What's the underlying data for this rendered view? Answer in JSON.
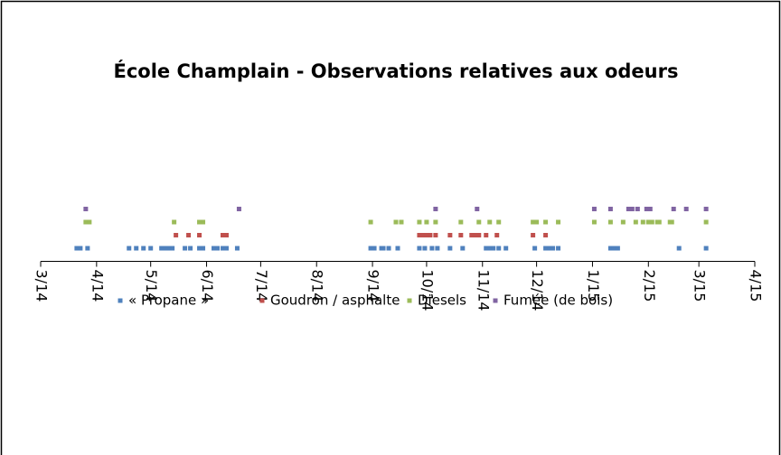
{
  "chart_data": {
    "type": "scatter",
    "title": "École Champlain - Observations relatives aux odeurs",
    "xlim": [
      41699,
      42095
    ],
    "xticks": [
      {
        "value": 41699,
        "label": "3/14"
      },
      {
        "value": 41730,
        "label": "4/14"
      },
      {
        "value": 41760,
        "label": "5/14"
      },
      {
        "value": 41791,
        "label": "6/14"
      },
      {
        "value": 41821,
        "label": "7/14"
      },
      {
        "value": 41852,
        "label": "8/14"
      },
      {
        "value": 41883,
        "label": "9/14"
      },
      {
        "value": 41913,
        "label": "10/14"
      },
      {
        "value": 41944,
        "label": "11/14"
      },
      {
        "value": 41974,
        "label": "12/14"
      },
      {
        "value": 42005,
        "label": "1/15"
      },
      {
        "value": 42036,
        "label": "2/15"
      },
      {
        "value": 42064,
        "label": "3/15"
      },
      {
        "value": 42095,
        "label": "4/15"
      }
    ],
    "ylim": [
      0,
      14
    ],
    "legend": "bottom",
    "series": [
      {
        "name": "« Propane »",
        "color": "#4f81bd",
        "x": [
          41719,
          41721,
          41725,
          41748,
          41752,
          41756,
          41760,
          41766,
          41768,
          41770,
          41772,
          41779,
          41782,
          41787,
          41789,
          41795,
          41797,
          41800,
          41802,
          41808,
          41882,
          41884,
          41888,
          41889,
          41892,
          41897,
          41909,
          41912,
          41916,
          41919,
          41926,
          41933,
          41946,
          41948,
          41950,
          41953,
          41957,
          41973,
          41979,
          41981,
          41983,
          41986,
          42015,
          42017,
          42019,
          42053,
          42068
        ],
        "values": [
          1,
          1,
          1,
          1,
          1,
          1,
          1,
          1,
          1,
          1,
          1,
          1,
          1,
          1,
          1,
          1,
          1,
          1,
          1,
          1,
          1,
          1,
          1,
          1,
          1,
          1,
          1,
          1,
          1,
          1,
          1,
          1,
          1,
          1,
          1,
          1,
          1,
          1,
          1,
          1,
          1,
          1,
          1,
          1,
          1,
          1,
          1
        ]
      },
      {
        "name": "Goudron / asphalte",
        "color": "#c0504d",
        "x": [
          41774,
          41781,
          41787,
          41800,
          41802,
          41909,
          41911,
          41913,
          41915,
          41918,
          41926,
          41932,
          41938,
          41940,
          41942,
          41946,
          41952,
          41972,
          41979
        ],
        "values": [
          2,
          2,
          2,
          2,
          2,
          2,
          2,
          2,
          2,
          2,
          2,
          2,
          2,
          2,
          2,
          2,
          2,
          2,
          2
        ]
      },
      {
        "name": "Diesels",
        "color": "#9bbb59",
        "x": [
          41724,
          41726,
          41773,
          41787,
          41789,
          41882,
          41896,
          41899,
          41909,
          41913,
          41918,
          41932,
          41942,
          41948,
          41953,
          41972,
          41974,
          41979,
          41986,
          42006,
          42015,
          42022,
          42029,
          42033,
          42036,
          42038,
          42041,
          42042,
          42048,
          42049,
          42068
        ],
        "values": [
          3,
          3,
          3,
          3,
          3,
          3,
          3,
          3,
          3,
          3,
          3,
          3,
          3,
          3,
          3,
          3,
          3,
          3,
          3,
          3,
          3,
          3,
          3,
          3,
          3,
          3,
          3,
          3,
          3,
          3,
          3
        ]
      },
      {
        "name": "Fumée (de bois)",
        "color": "#8064a2",
        "x": [
          41724,
          41809,
          41918,
          41941,
          42006,
          42015,
          42025,
          42027,
          42030,
          42035,
          42037,
          42050,
          42057,
          42068
        ],
        "values": [
          4,
          4,
          4,
          4,
          4,
          4,
          4,
          4,
          4,
          4,
          4,
          4,
          4,
          4
        ]
      }
    ]
  }
}
